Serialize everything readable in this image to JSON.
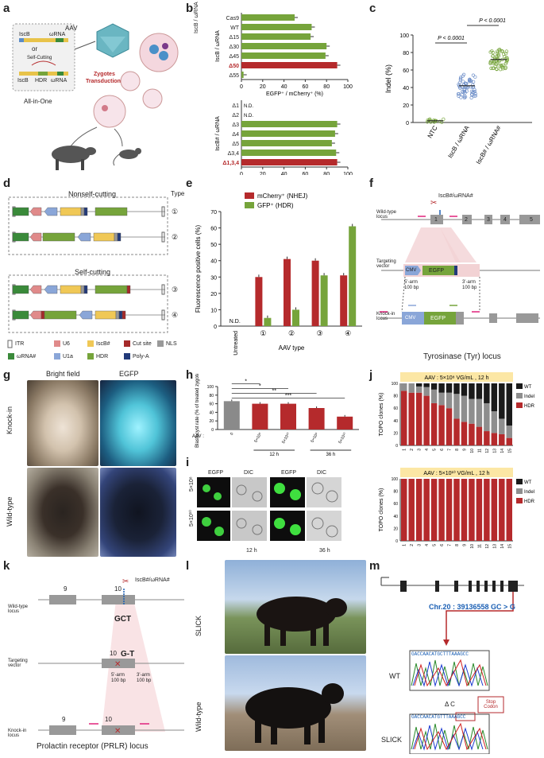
{
  "panel_letters": {
    "a": "a",
    "b": "b",
    "c": "c",
    "d": "d",
    "e": "e",
    "f": "f",
    "g": "g",
    "h": "h",
    "i": "i",
    "j": "j",
    "k": "k",
    "l": "l",
    "m": "m"
  },
  "panel_a": {
    "aav": "AAV",
    "construct1": [
      "IscB",
      "ωRNA"
    ],
    "or": "or",
    "self_cutting": "Self-Cutting",
    "construct2": [
      "IscB",
      "HDR",
      "ωRNA"
    ],
    "zygotes": "Zygotes",
    "transduction": "Transduction",
    "all_in_one": "All-in-One"
  },
  "chart_data": [
    {
      "panel": "b-top",
      "type": "bar",
      "orientation": "horizontal",
      "ylabel": "IscB / ωRNA",
      "xlabel": "EGFP⁺ / mCherry⁺ (%)",
      "xlim": [
        0,
        100
      ],
      "xticks": [
        0,
        20,
        40,
        60,
        80,
        100
      ],
      "categories": [
        "Cas9",
        "WT",
        "Δ15",
        "Δ30",
        "Δ45",
        "Δ50",
        "Δ55"
      ],
      "values": [
        50,
        66,
        65,
        80,
        79,
        90,
        2
      ],
      "highlight": "Δ50",
      "colors": {
        "normal": "#76a43b",
        "highlight": "#b52a2c"
      }
    },
    {
      "panel": "b-bottom",
      "type": "bar",
      "orientation": "horizontal",
      "ylabel": "IscB# / ωRNA",
      "xlabel": "EGFP⁺ / mCherry⁺ (%)",
      "xlim": [
        0,
        100
      ],
      "xticks": [
        0,
        20,
        40,
        60,
        80,
        100
      ],
      "categories": [
        "Δ1",
        "Δ2",
        "Δ3",
        "Δ4",
        "Δ5",
        "Δ3,4",
        "Δ1,3,4"
      ],
      "values": [
        null,
        null,
        90,
        88,
        85,
        89,
        90
      ],
      "not_determined": "N.D.",
      "highlight": "Δ1,3,4"
    },
    {
      "panel": "c",
      "type": "scatter",
      "ylabel": "Indel (%)",
      "ylim": [
        0,
        100
      ],
      "yticks": [
        0,
        20,
        40,
        60,
        80,
        100
      ],
      "categories": [
        "NTC",
        "IscB / ωRNA",
        "IscB# / ωRNA#"
      ],
      "group_means": [
        2,
        42,
        72
      ],
      "pvalues": [
        "P < 0.0001",
        "P < 0.0001"
      ]
    },
    {
      "panel": "e",
      "type": "bar",
      "ylabel": "Fluorescence positive cells (%)",
      "xlabel": "AAV type",
      "ylim": [
        0,
        70
      ],
      "yticks": [
        0,
        10,
        20,
        30,
        40,
        50,
        60,
        70
      ],
      "categories": [
        "Untreated",
        "①",
        "②",
        "③",
        "④"
      ],
      "series": [
        {
          "name": "mCherry⁺ (NHEJ)",
          "values": [
            0,
            30,
            41,
            40,
            31
          ],
          "color": "#b52a2c"
        },
        {
          "name": "GFP⁺ (HDR)",
          "values": [
            0,
            5,
            10,
            31,
            61
          ],
          "color": "#76a43b"
        }
      ],
      "nd_label": "N.D."
    },
    {
      "panel": "h",
      "type": "bar",
      "ylabel": "Blastocyst rate (% of treated zygotes)",
      "ylim": [
        0,
        100
      ],
      "yticks": [
        0,
        20,
        40,
        60,
        80,
        100
      ],
      "x_prefix": "AAV :",
      "categories": [
        "0",
        "5×10⁸",
        "5×10¹⁰",
        "5×10⁸",
        "5×10¹⁰"
      ],
      "groups": [
        "12 h",
        "36 h"
      ],
      "values": [
        66,
        60,
        60,
        50,
        30
      ],
      "colors": [
        "#8a8a8a",
        "#b52a2c",
        "#b52a2c",
        "#b52a2c",
        "#b52a2c"
      ],
      "significance": [
        "*",
        "*",
        "**",
        "***"
      ]
    },
    {
      "panel": "j-top",
      "type": "bar",
      "stacked": true,
      "title": "AAV : 5×10⁸ VG/mL , 12 h",
      "ylabel": "TOPO clones (%)",
      "ylim": [
        0,
        100
      ],
      "categories": [
        "1",
        "2",
        "3",
        "4",
        "5",
        "6",
        "7",
        "8",
        "9",
        "10",
        "11",
        "12",
        "13",
        "14",
        "15"
      ],
      "series": [
        {
          "name": "HDR",
          "values": [
            88,
            85,
            85,
            80,
            68,
            65,
            60,
            43,
            38,
            35,
            30,
            23,
            20,
            18,
            12
          ]
        },
        {
          "name": "Indel",
          "values": [
            12,
            15,
            10,
            14,
            22,
            20,
            25,
            40,
            42,
            40,
            45,
            45,
            35,
            25,
            20
          ]
        },
        {
          "name": "WT",
          "values": [
            0,
            0,
            5,
            6,
            10,
            15,
            15,
            17,
            20,
            25,
            25,
            32,
            45,
            57,
            68
          ]
        }
      ]
    },
    {
      "panel": "j-bottom",
      "type": "bar",
      "stacked": true,
      "title": "AAV : 5×10¹⁰ VG/mL , 12 h",
      "ylabel": "TOPO clones (%)",
      "ylim": [
        0,
        100
      ],
      "categories": [
        "1",
        "2",
        "3",
        "4",
        "5",
        "6",
        "7",
        "8",
        "9",
        "10",
        "11",
        "12",
        "13",
        "14",
        "15"
      ],
      "series": [
        {
          "name": "HDR",
          "values": [
            100,
            100,
            100,
            100,
            100,
            100,
            100,
            100,
            100,
            100,
            100,
            100,
            100,
            100,
            100
          ]
        }
      ]
    }
  ],
  "b_labels": {
    "top_axis": "IscB / ωRNA",
    "bottom_axis": "IscB# / ωRNA",
    "xlabel_top": "EGFP⁺ / mCherry⁺ (%)",
    "xlabel_bottom": "EGFP⁺ / mCherry⁺ (%)",
    "nd": "N.D."
  },
  "c_labels": {
    "ylabel": "Indel (%)",
    "p1": "P < 0.0001",
    "p2": "P < 0.0001",
    "x1": "NTC",
    "x2": "IscB / ωRNA",
    "x3": "IscB# / ωRNA#"
  },
  "panel_d": {
    "nonself": "Nonself-cutting",
    "self": "Self-cutting",
    "type": "Type",
    "types": [
      "①",
      "②",
      "③",
      "④"
    ],
    "legend": [
      "ITR",
      "U6",
      "IscB#",
      "Cut site",
      "NLS",
      "ωRNA#",
      "U1a",
      "HDR",
      "Poly-A"
    ]
  },
  "e_labels": {
    "ylabel": "Fluorescence positive cells (%)",
    "xlabel": "AAV type",
    "nd": "N.D.",
    "legend1": "mCherry⁺ (NHEJ)",
    "legend2": "GFP⁺ (HDR)",
    "cats": [
      "Untreated",
      "①",
      "②",
      "③",
      "④"
    ]
  },
  "panel_f": {
    "guide": "IscB#/ωRNA#",
    "wt": "Wild-type locus",
    "tv": "Targeting vector",
    "ki": "Knock-in locus",
    "exons": [
      "1",
      "2",
      "3",
      "4",
      "5"
    ],
    "cmv": "CMV",
    "egfp": "EGFP",
    "arm5": "5'-arm",
    "arm3": "3'-arm",
    "bp": "100 bp",
    "title": "Tyrosinase (Tyr) locus"
  },
  "panel_g": {
    "bright": "Bright field",
    "egfp": "EGFP",
    "ki": "Knock-in",
    "wt": "Wild-type"
  },
  "h_labels": {
    "ylabel": "Blastocyst rate (% of treated zygotes)",
    "aav": "AAV :",
    "x": [
      "0",
      "5×10⁸",
      "5×10¹⁰",
      "5×10⁸",
      "5×10¹⁰"
    ],
    "g1": "12 h",
    "g2": "36 h",
    "s1": "*",
    "s2": "*",
    "s3": "**",
    "s4": "***"
  },
  "panel_i": {
    "egfp": "EGFP",
    "dic": "DIC",
    "row1": "5×10⁸",
    "row2": "5×10¹⁰",
    "t1": "12 h",
    "t2": "36 h"
  },
  "j_labels": {
    "ylabel": "TOPO clones (%)",
    "title1": "AAV : 5×10⁸ VG/mL , 12 h",
    "title2": "AAV : 5×10¹⁰ VG/mL , 12 h",
    "wt": "WT",
    "indel": "Indel",
    "hdr": "HDR"
  },
  "panel_k": {
    "guide": "IscB#/ωRNA#",
    "wt": "Wild-type locus",
    "tv": "Targeting vector",
    "ki": "Knock-in locus",
    "e9": "9",
    "e10": "10",
    "gct": "GCT",
    "g_t": "G-T",
    "arm5": "5'-arm",
    "arm3": "3'-arm",
    "bp": "100 bp",
    "title": "Prolactin receptor (PRLR) locus"
  },
  "panel_l": {
    "slick": "SLICK",
    "wt": "Wild-type"
  },
  "panel_m": {
    "chr": "Chr.20 : 39136558 GC > G",
    "wt": "WT",
    "slick": "SLICK",
    "delta": "Δ C",
    "stop": "Stop Codon",
    "seq_wt": "GACCAACATGCTTTAAAGCC",
    "seq_slick": "GACCAACATGTTTAAAGCC"
  }
}
